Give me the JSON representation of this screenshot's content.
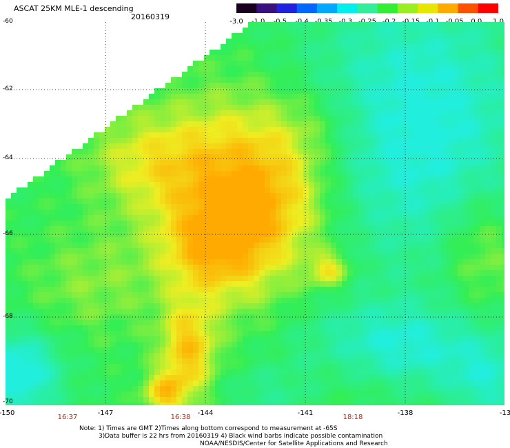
{
  "header": {
    "title": "ASCAT 25KM MLE-1 descending",
    "date": "20160319"
  },
  "colorbar": {
    "labels": [
      "-3.0",
      "-1.0",
      "-0.5",
      "-0.4",
      "-0.35",
      "-0.3",
      "-0.25",
      "-0.2",
      "-0.15",
      "-0.1",
      "-0.05",
      "0.0",
      "1.0"
    ],
    "colors": [
      "#1a0020",
      "#3a1080",
      "#2020e0",
      "#0066ff",
      "#00a8ff",
      "#00eeee",
      "#33ee99",
      "#33ee33",
      "#99ee22",
      "#e6e600",
      "#ffaa00",
      "#ff5000",
      "#ff0000"
    ]
  },
  "map": {
    "lat_labels": [
      "-60",
      "-62",
      "-64",
      "-66",
      "-68",
      "-70"
    ],
    "lon_labels": [
      "-150",
      "-147",
      "-144",
      "-141",
      "-138",
      "-13"
    ],
    "time_labels": [
      "16:37",
      "16:38",
      "18:18"
    ],
    "colors": {
      "no_data": "#ffffff",
      "cyan": "#22eedd",
      "green": "#33ee55",
      "yellow": "#eeee22",
      "orange": "#ffaa00"
    }
  },
  "notes": {
    "line1": "Note: 1) Times are GMT 2)Times along bottom correspond to measurement at -65S",
    "line2": "3)Data buffer is 22 hrs from 20160319 4) Black wind barbs indicate possible contamination",
    "line3": "NOAA/NESDIS/Center for Satellite Applications and Research"
  }
}
